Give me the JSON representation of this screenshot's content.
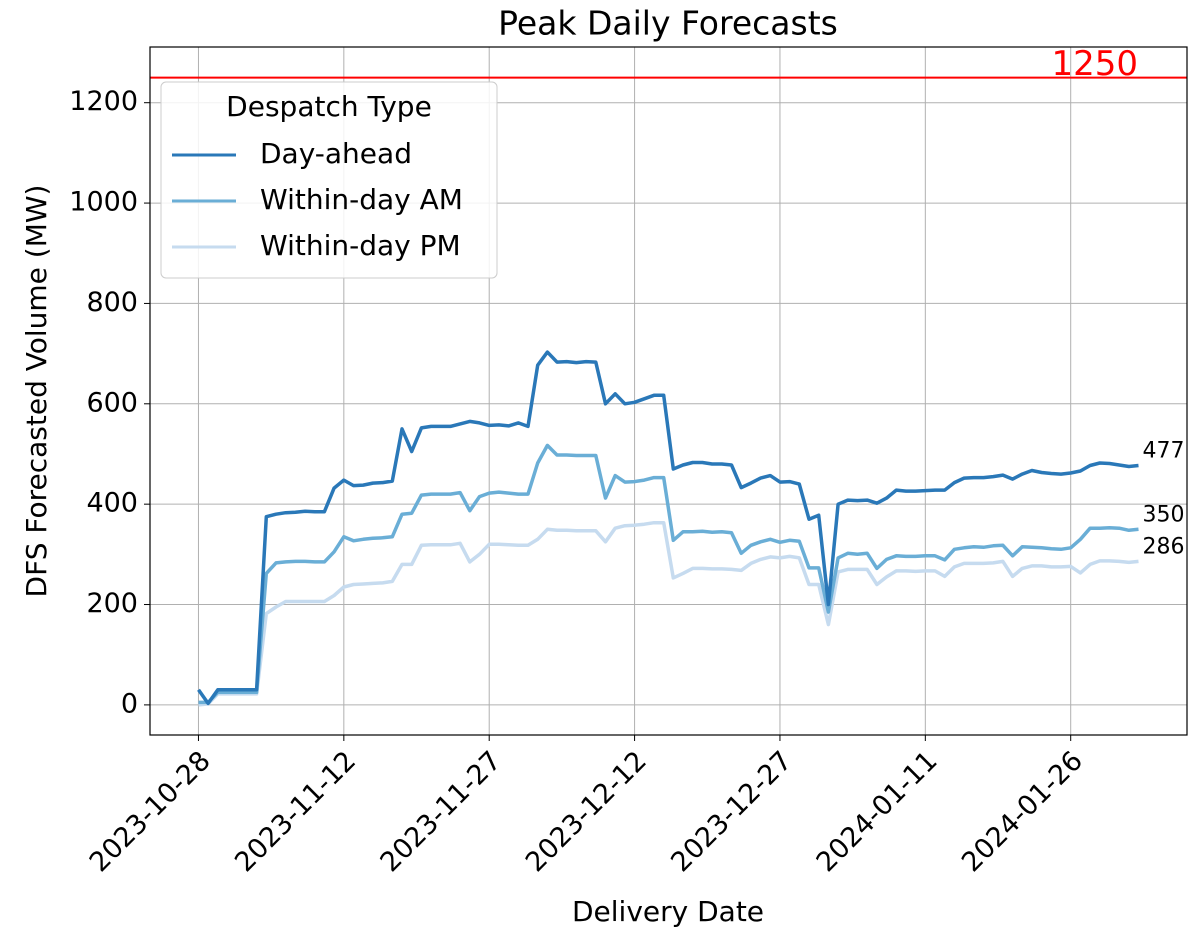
{
  "chart_data": {
    "type": "line",
    "title": "Peak Daily Forecasts",
    "x_label": "Delivery Date",
    "y_label": "DFS Forecasted Volume (MW)",
    "x": [
      "2023-10-28",
      "2023-10-29",
      "2023-10-30",
      "2023-10-31",
      "2023-11-01",
      "2023-11-02",
      "2023-11-03",
      "2023-11-04",
      "2023-11-05",
      "2023-11-06",
      "2023-11-07",
      "2023-11-08",
      "2023-11-09",
      "2023-11-10",
      "2023-11-11",
      "2023-11-12",
      "2023-11-13",
      "2023-11-14",
      "2023-11-15",
      "2023-11-16",
      "2023-11-17",
      "2023-11-18",
      "2023-11-19",
      "2023-11-20",
      "2023-11-21",
      "2023-11-22",
      "2023-11-23",
      "2023-11-24",
      "2023-11-25",
      "2023-11-26",
      "2023-11-27",
      "2023-11-28",
      "2023-11-29",
      "2023-11-30",
      "2023-12-01",
      "2023-12-02",
      "2023-12-03",
      "2023-12-04",
      "2023-12-05",
      "2023-12-06",
      "2023-12-07",
      "2023-12-08",
      "2023-12-09",
      "2023-12-10",
      "2023-12-11",
      "2023-12-12",
      "2023-12-13",
      "2023-12-14",
      "2023-12-15",
      "2023-12-16",
      "2023-12-17",
      "2023-12-18",
      "2023-12-19",
      "2023-12-20",
      "2023-12-21",
      "2023-12-22",
      "2023-12-23",
      "2023-12-24",
      "2023-12-25",
      "2023-12-26",
      "2023-12-27",
      "2023-12-28",
      "2023-12-29",
      "2023-12-30",
      "2023-12-31",
      "2024-01-01",
      "2024-01-02",
      "2024-01-03",
      "2024-01-04",
      "2024-01-05",
      "2024-01-06",
      "2024-01-07",
      "2024-01-08",
      "2024-01-09",
      "2024-01-10",
      "2024-01-11",
      "2024-01-12",
      "2024-01-13",
      "2024-01-14",
      "2024-01-15",
      "2024-01-16",
      "2024-01-17",
      "2024-01-18",
      "2024-01-19",
      "2024-01-20",
      "2024-01-21",
      "2024-01-22",
      "2024-01-23",
      "2024-01-24",
      "2024-01-25",
      "2024-01-26",
      "2024-01-27",
      "2024-01-28",
      "2024-01-29",
      "2024-01-30",
      "2024-01-31",
      "2024-02-01",
      "2024-02-02"
    ],
    "series": [
      {
        "name": "Day-ahead",
        "color": "#2a78b8",
        "values": [
          30,
          3,
          30,
          30,
          30,
          30,
          30,
          375,
          380,
          383,
          384,
          386,
          385,
          385,
          432,
          448,
          437,
          438,
          442,
          443,
          446,
          550,
          505,
          552,
          555,
          555,
          555,
          560,
          565,
          562,
          557,
          558,
          556,
          562,
          555,
          677,
          703,
          683,
          684,
          682,
          684,
          683,
          600,
          620,
          600,
          603,
          610,
          617,
          617,
          470,
          478,
          483,
          483,
          480,
          480,
          478,
          433,
          442,
          452,
          457,
          444,
          445,
          440,
          370,
          378,
          200,
          400,
          408,
          407,
          408,
          402,
          412,
          428,
          426,
          426,
          427,
          428,
          428,
          443,
          452,
          453,
          453,
          455,
          458,
          450,
          460,
          467,
          463,
          461,
          460,
          462,
          466,
          477,
          482,
          481,
          478,
          475,
          477
        ]
      },
      {
        "name": "Within-day AM",
        "color": "#6aaed6",
        "values": [
          5,
          5,
          25,
          25,
          25,
          25,
          25,
          262,
          283,
          285,
          286,
          286,
          285,
          285,
          305,
          335,
          327,
          330,
          332,
          333,
          335,
          380,
          382,
          418,
          420,
          420,
          420,
          423,
          387,
          415,
          422,
          424,
          422,
          420,
          420,
          482,
          517,
          498,
          498,
          497,
          497,
          497,
          412,
          457,
          444,
          445,
          448,
          453,
          453,
          328,
          345,
          345,
          346,
          344,
          345,
          343,
          302,
          318,
          325,
          330,
          324,
          328,
          326,
          273,
          273,
          185,
          293,
          302,
          300,
          302,
          272,
          290,
          297,
          296,
          296,
          297,
          297,
          289,
          310,
          313,
          315,
          314,
          317,
          318,
          297,
          315,
          314,
          313,
          311,
          310,
          313,
          330,
          352,
          352,
          353,
          352,
          348,
          350
        ]
      },
      {
        "name": "Within-day PM",
        "color": "#c6dbef",
        "values": [
          0,
          2,
          22,
          22,
          22,
          22,
          22,
          182,
          195,
          206,
          206,
          206,
          206,
          206,
          218,
          235,
          240,
          241,
          242,
          243,
          246,
          280,
          280,
          318,
          319,
          319,
          319,
          322,
          285,
          300,
          320,
          320,
          319,
          318,
          318,
          330,
          350,
          348,
          348,
          347,
          347,
          347,
          325,
          352,
          357,
          358,
          360,
          363,
          363,
          253,
          262,
          272,
          272,
          271,
          271,
          270,
          268,
          282,
          290,
          295,
          293,
          296,
          293,
          240,
          240,
          160,
          265,
          270,
          270,
          270,
          240,
          255,
          267,
          267,
          266,
          267,
          267,
          256,
          275,
          282,
          282,
          282,
          283,
          286,
          256,
          272,
          277,
          277,
          275,
          275,
          276,
          263,
          280,
          287,
          287,
          286,
          284,
          286
        ]
      }
    ],
    "hline": {
      "value": 1250,
      "color": "#ff0000"
    },
    "legend": {
      "title": "Despatch Type",
      "location": "upper left"
    },
    "xlim": [
      "2023-10-23",
      "2024-02-07"
    ],
    "xticks": [
      "2023-10-28",
      "2023-11-12",
      "2023-11-27",
      "2023-12-12",
      "2023-12-27",
      "2024-01-11",
      "2024-01-26"
    ],
    "ylim": [
      -60,
      1311
    ],
    "yticks": [
      0,
      200,
      400,
      600,
      800,
      1000,
      1200
    ],
    "grid": true
  }
}
